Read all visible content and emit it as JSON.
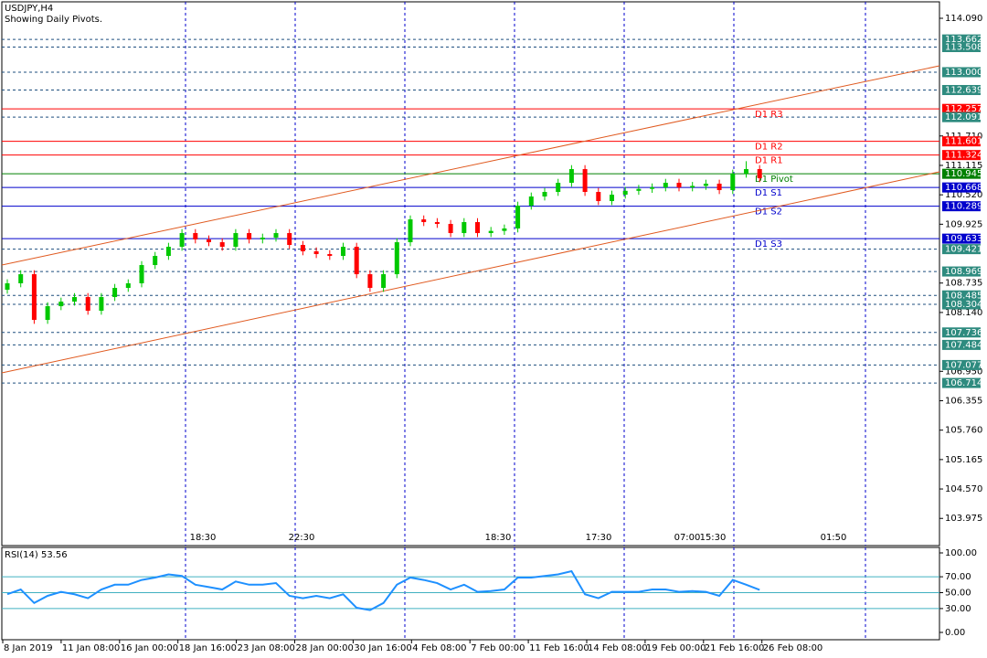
{
  "header": {
    "symbol": "USDJPY,H4",
    "subtitle": "Showing Daily Pivots."
  },
  "chart_data": {
    "type": "candlestick",
    "open": [
      108.6,
      108.73,
      108.914,
      107.99,
      108.267,
      108.36,
      108.452,
      108.175,
      108.452,
      108.637,
      108.73,
      109.099,
      109.284,
      109.469,
      109.746,
      109.617,
      109.561,
      109.469,
      109.746,
      109.617,
      109.654,
      109.746,
      109.506,
      109.377,
      109.321,
      109.284,
      109.469,
      108.914,
      108.637,
      108.914,
      109.561,
      110.023,
      109.968,
      109.931,
      109.746,
      109.968,
      109.746,
      109.79,
      109.839,
      110.301,
      110.486,
      110.578,
      110.763,
      111.04,
      110.578,
      110.393,
      110.523,
      110.6,
      110.64,
      110.67,
      110.763,
      110.67,
      110.7,
      110.745,
      110.615,
      110.948,
      111.04
    ],
    "high": [
      108.81,
      108.994,
      108.994,
      108.347,
      108.44,
      108.532,
      108.532,
      108.532,
      108.717,
      108.81,
      109.179,
      109.364,
      109.549,
      109.826,
      109.826,
      109.697,
      109.641,
      109.826,
      109.826,
      109.734,
      109.826,
      109.826,
      109.586,
      109.457,
      109.401,
      109.549,
      109.549,
      108.994,
      108.994,
      109.641,
      110.103,
      110.103,
      110.048,
      110.011,
      110.048,
      110.048,
      109.87,
      109.919,
      110.381,
      110.566,
      110.658,
      110.843,
      111.12,
      111.12,
      110.658,
      110.603,
      110.68,
      110.72,
      110.75,
      110.843,
      110.843,
      110.78,
      110.825,
      110.825,
      111.028,
      111.2,
      111.12
    ],
    "low": [
      108.52,
      108.65,
      107.91,
      107.91,
      108.187,
      108.28,
      108.095,
      108.095,
      108.372,
      108.557,
      108.65,
      109.019,
      109.204,
      109.389,
      109.537,
      109.481,
      109.389,
      109.389,
      109.537,
      109.537,
      109.574,
      109.426,
      109.297,
      109.241,
      109.204,
      109.204,
      108.834,
      108.557,
      108.557,
      108.834,
      109.481,
      109.888,
      109.851,
      109.666,
      109.666,
      109.666,
      109.666,
      109.71,
      109.759,
      110.221,
      110.406,
      110.498,
      110.683,
      110.498,
      110.313,
      110.313,
      110.443,
      110.52,
      110.56,
      110.59,
      110.59,
      110.59,
      110.62,
      110.535,
      110.535,
      110.868,
      110.775
    ],
    "close": [
      108.73,
      108.914,
      107.99,
      108.267,
      108.36,
      108.452,
      108.175,
      108.452,
      108.637,
      108.73,
      109.099,
      109.284,
      109.469,
      109.746,
      109.617,
      109.561,
      109.469,
      109.746,
      109.617,
      109.654,
      109.746,
      109.506,
      109.377,
      109.321,
      109.284,
      109.469,
      108.914,
      108.637,
      108.914,
      109.561,
      110.023,
      109.968,
      109.931,
      109.746,
      109.968,
      109.746,
      109.79,
      109.839,
      110.301,
      110.486,
      110.578,
      110.763,
      111.04,
      110.578,
      110.393,
      110.523,
      110.6,
      110.64,
      110.67,
      110.763,
      110.67,
      110.7,
      110.745,
      110.615,
      110.948,
      111.04,
      110.855
    ],
    "up_color": "#00c800",
    "down_color": "#ff0000",
    "ylim": [
      103.425,
      114.423
    ],
    "yticks": [
      {
        "value": 114.09,
        "label": "114.090"
      },
      {
        "value": 111.71,
        "label": "111.710"
      },
      111.115,
      {
        "value": 110.52,
        "label": "110.520"
      },
      109.925,
      108.735,
      {
        "value": 108.14,
        "label": "108.140"
      },
      {
        "value": 106.95,
        "label": "106.950"
      },
      106.355,
      {
        "value": 105.76,
        "label": "105.760"
      },
      105.165,
      {
        "value": 104.57,
        "label": "104.570"
      },
      103.975
    ],
    "level_colors": {
      "dotted": "#2e8b7f",
      "r": "#ff0000",
      "p": "#008000",
      "s": "#0000cc"
    },
    "levels": [
      {
        "price": 113.662,
        "style": "dotted"
      },
      {
        "price": 113.508,
        "style": "dotted"
      },
      {
        "price": {
          "value": 113,
          "label": "113.000"
        },
        "style": "dotted"
      },
      {
        "price": 112.639,
        "style": "dotted"
      },
      {
        "price": 112.257,
        "style": "r",
        "name": "D1 R3"
      },
      {
        "price": 112.091,
        "style": "dotted"
      },
      {
        "price": 111.601,
        "style": "r",
        "name": "D1 R2"
      },
      {
        "price": 111.324,
        "style": "r",
        "name": "D1 R1"
      },
      {
        "price": 110.945,
        "style": "p",
        "name": "D1 Pivot"
      },
      {
        "price": 110.668,
        "style": "s",
        "name": "D1 S1"
      },
      {
        "price": 110.289,
        "style": "s",
        "name": "D1 S2"
      },
      {
        "price": 109.633,
        "style": "s",
        "name": "D1 S3"
      },
      {
        "price": 109.421,
        "style": "dotted"
      },
      {
        "price": 108.969,
        "style": "dotted"
      },
      {
        "price": 108.485,
        "style": "dotted"
      },
      {
        "price": 108.304,
        "style": "dotted"
      },
      {
        "price": 107.736,
        "style": "dotted"
      },
      {
        "price": 107.484,
        "style": "dotted"
      },
      {
        "price": 107.077,
        "style": "dotted"
      },
      {
        "price": 106.714,
        "style": "dotted"
      }
    ],
    "trendline_color": "#e05a20",
    "trendlines": [
      {
        "start": 109.099,
        "end": 113.129
      },
      {
        "start": 106.918,
        "end": 110.985
      }
    ],
    "x_labels": [
      "8 Jan 2019",
      "11 Jan 08:00",
      "16 Jan 00:00",
      "18 Jan 16:00",
      "23 Jan 08:00",
      "28 Jan 00:00",
      "30 Jan 16:00",
      "4 Feb 08:00",
      "7 Feb 00:00",
      "11 Feb 16:00",
      "14 Feb 08:00",
      "19 Feb 00:00",
      "21 Feb 16:00",
      "26 Feb 08:00"
    ],
    "time_marks": [
      "18:30",
      "22:30",
      "18:30",
      "17:30",
      "07:00",
      "15:30",
      "01:50"
    ]
  },
  "rsi": {
    "type": "line",
    "label": "RSI(14) 53.56",
    "color": "#1e90ff",
    "level_color": "#40b0c0",
    "values": [
      48,
      54,
      37,
      46,
      51,
      48,
      43,
      54,
      60,
      60,
      66,
      69,
      73,
      71,
      60,
      57,
      54,
      64,
      60,
      60,
      62,
      46,
      43,
      46,
      43,
      48,
      31,
      28,
      37,
      60,
      69,
      66,
      62,
      54,
      60,
      51,
      52,
      54,
      69,
      69,
      71,
      73,
      77,
      48,
      43,
      51,
      51,
      51,
      54,
      54,
      51,
      52,
      51,
      46,
      66,
      60,
      53.56
    ],
    "ylim": [
      -9.2,
      106.9
    ],
    "yticks": [
      {
        "value": 100,
        "label": "100.00"
      },
      {
        "value": 70,
        "label": "70.00"
      },
      {
        "value": 50,
        "label": "50.00"
      },
      {
        "value": 30,
        "label": "30.00"
      },
      {
        "value": 0,
        "label": "0.00"
      }
    ],
    "levels": [
      70,
      50,
      30
    ]
  }
}
